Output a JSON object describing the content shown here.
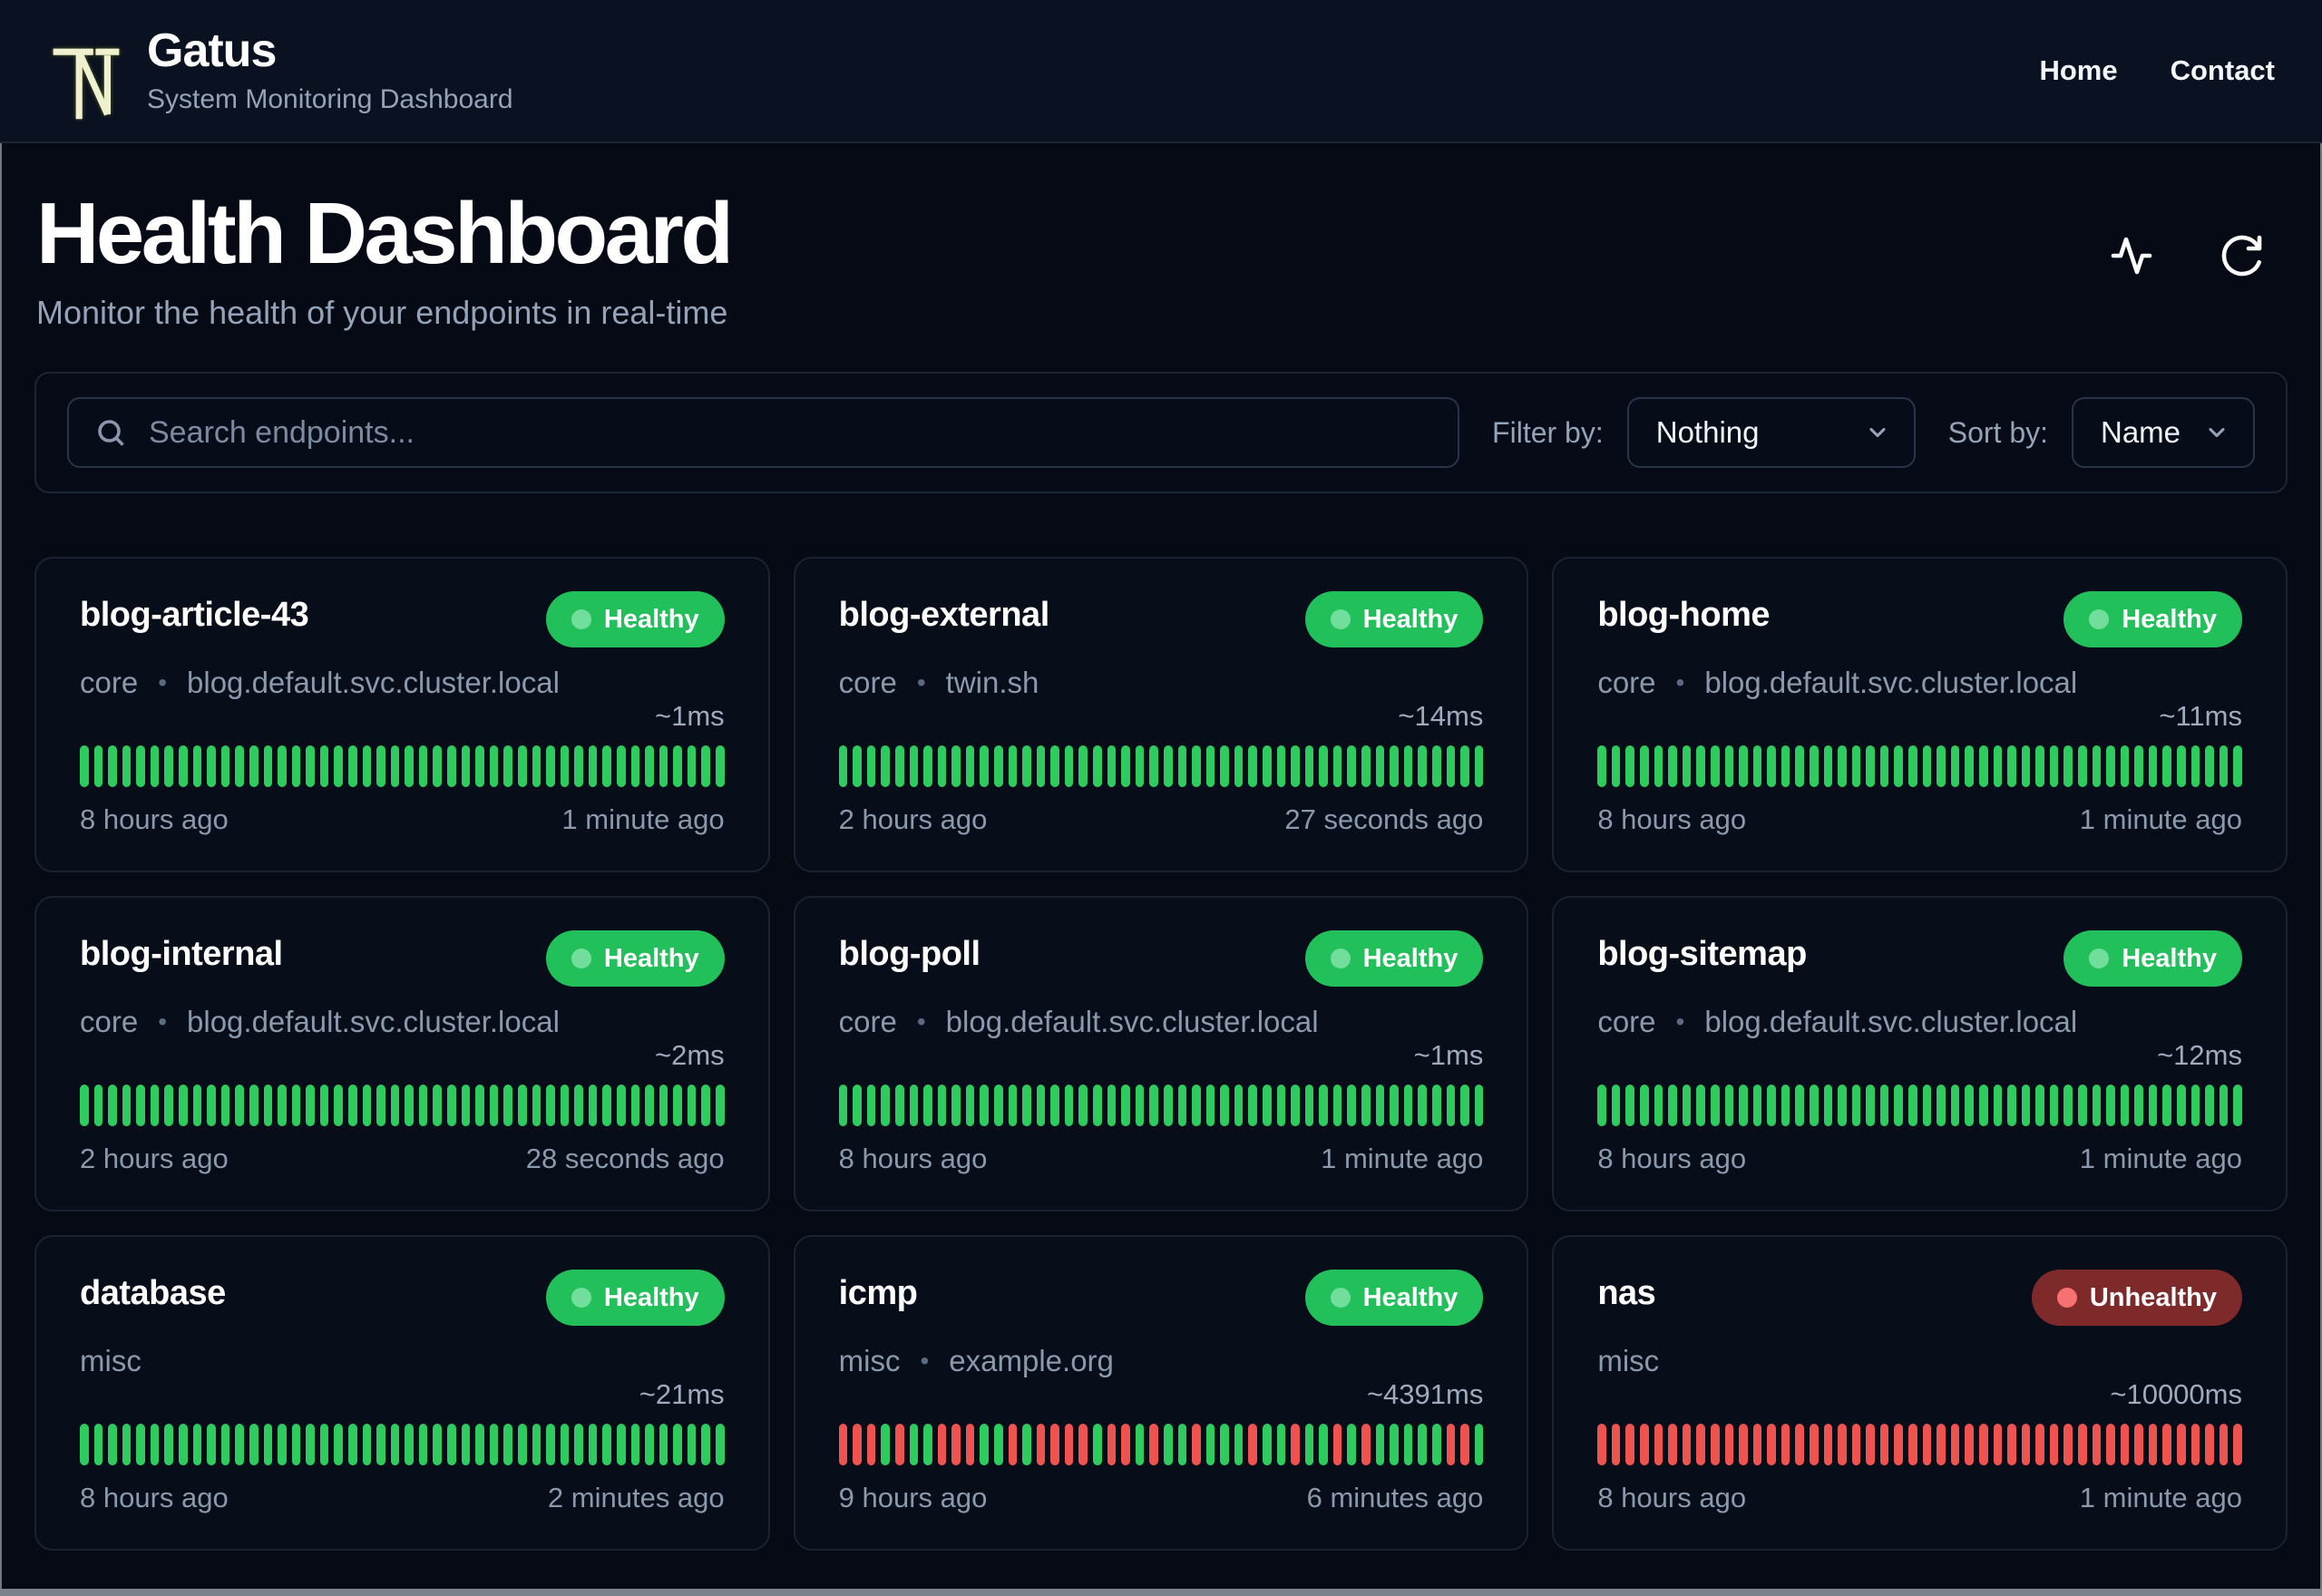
{
  "header": {
    "brand": "Gatus",
    "tagline": "System Monitoring Dashboard",
    "logo_icon": "tn-monogram-icon",
    "nav": [
      {
        "label": "Home"
      },
      {
        "label": "Contact"
      }
    ]
  },
  "hero": {
    "title": "Health Dashboard",
    "subtitle": "Monitor the health of your endpoints in real-time",
    "action_icons": [
      "activity-icon",
      "refresh-icon"
    ]
  },
  "toolbar": {
    "search_placeholder": "Search endpoints...",
    "search_icon": "search-icon",
    "filter_label": "Filter by:",
    "filter_value": "Nothing",
    "sort_label": "Sort by:",
    "sort_value": "Name"
  },
  "colors": {
    "healthy_badge": "#22c05b",
    "unhealthy_badge": "#7e2a2a",
    "bar_green": "#2ecb5f",
    "bar_red": "#ef5350",
    "page_bg": "#050a15",
    "muted_text": "#94a3b8"
  },
  "cards": [
    {
      "name": "blog-article-43",
      "group": "core",
      "host": "blog.default.svc.cluster.local",
      "status": "Healthy",
      "latency": "~1ms",
      "from": "8 hours ago",
      "to": "1 minute ago",
      "bars": {
        "fill": "g",
        "count": 46
      }
    },
    {
      "name": "blog-external",
      "group": "core",
      "host": "twin.sh",
      "status": "Healthy",
      "latency": "~14ms",
      "from": "2 hours ago",
      "to": "27 seconds ago",
      "bars": {
        "fill": "g",
        "count": 46
      }
    },
    {
      "name": "blog-home",
      "group": "core",
      "host": "blog.default.svc.cluster.local",
      "status": "Healthy",
      "latency": "~11ms",
      "from": "8 hours ago",
      "to": "1 minute ago",
      "bars": {
        "fill": "g",
        "count": 46
      }
    },
    {
      "name": "blog-internal",
      "group": "core",
      "host": "blog.default.svc.cluster.local",
      "status": "Healthy",
      "latency": "~2ms",
      "from": "2 hours ago",
      "to": "28 seconds ago",
      "bars": {
        "fill": "g",
        "count": 46
      }
    },
    {
      "name": "blog-poll",
      "group": "core",
      "host": "blog.default.svc.cluster.local",
      "status": "Healthy",
      "latency": "~1ms",
      "from": "8 hours ago",
      "to": "1 minute ago",
      "bars": {
        "fill": "g",
        "count": 46
      }
    },
    {
      "name": "blog-sitemap",
      "group": "core",
      "host": "blog.default.svc.cluster.local",
      "status": "Healthy",
      "latency": "~12ms",
      "from": "8 hours ago",
      "to": "1 minute ago",
      "bars": {
        "fill": "g",
        "count": 46
      }
    },
    {
      "name": "database",
      "group": "misc",
      "host": null,
      "status": "Healthy",
      "latency": "~21ms",
      "from": "8 hours ago",
      "to": "2 minutes ago",
      "bars": {
        "fill": "g",
        "count": 46
      }
    },
    {
      "name": "icmp",
      "group": "misc",
      "host": "example.org",
      "status": "Healthy",
      "latency": "~4391ms",
      "from": "9 hours ago",
      "to": "6 minutes ago",
      "bars": {
        "pattern": [
          "r",
          "r",
          "r",
          "g",
          "r",
          "g",
          "g",
          "r",
          "r",
          "r",
          "g",
          "g",
          "r",
          "g",
          "r",
          "r",
          "r",
          "r",
          "g",
          "r",
          "r",
          "g",
          "r",
          "g",
          "g",
          "r",
          "g",
          "g",
          "g",
          "r",
          "g",
          "g",
          "r",
          "g",
          "g",
          "r",
          "g",
          "r",
          "g",
          "g",
          "g",
          "g",
          "g",
          "r",
          "r",
          "g"
        ]
      }
    },
    {
      "name": "nas",
      "group": "misc",
      "host": null,
      "status": "Unhealthy",
      "latency": "~10000ms",
      "from": "8 hours ago",
      "to": "1 minute ago",
      "bars": {
        "fill": "r",
        "count": 46
      }
    }
  ]
}
